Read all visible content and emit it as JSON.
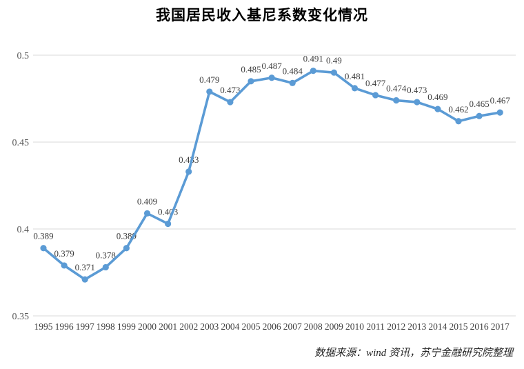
{
  "title": "我国居民收入基尼系数变化情况",
  "source_note": "数据来源：wind 资讯，苏宁金融研究院整理",
  "chart_data": {
    "type": "line",
    "title": "我国居民收入基尼系数变化情况",
    "categories": [
      "1995",
      "1996",
      "1997",
      "1998",
      "1999",
      "2000",
      "2001",
      "2002",
      "2003",
      "2004",
      "2005",
      "2006",
      "2007",
      "2008",
      "2009",
      "2010",
      "2011",
      "2012",
      "2013",
      "2014",
      "2015",
      "2016",
      "2017"
    ],
    "values": [
      0.389,
      0.379,
      0.371,
      0.378,
      0.389,
      0.409,
      0.403,
      0.433,
      0.479,
      0.473,
      0.485,
      0.487,
      0.484,
      0.491,
      0.49,
      0.481,
      0.477,
      0.474,
      0.473,
      0.469,
      0.462,
      0.465,
      0.467
    ],
    "data_labels": [
      "0.389",
      "0.379",
      "0.371",
      "0.378",
      "0.389",
      "0.409",
      "0.403",
      "0.433",
      "0.479",
      "0.473",
      "0.485",
      "0.487",
      "0.484",
      "0.491",
      "0.49",
      "0.481",
      "0.477",
      "0.474",
      "0.473",
      "0.469",
      "0.462",
      "0.465",
      "0.467"
    ],
    "xlabel": "",
    "ylabel": "",
    "ylim": [
      0.35,
      0.5
    ],
    "yticks": [
      0.35,
      0.4,
      0.45,
      0.5
    ],
    "ytick_labels": [
      "0.35",
      "0.4",
      "0.45",
      "0.5"
    ],
    "grid": "horizontal",
    "grid_color": "#d9d9d9",
    "legend": "none",
    "line_color": "#5b9bd5",
    "marker": "circle",
    "data_label_position": "above"
  }
}
